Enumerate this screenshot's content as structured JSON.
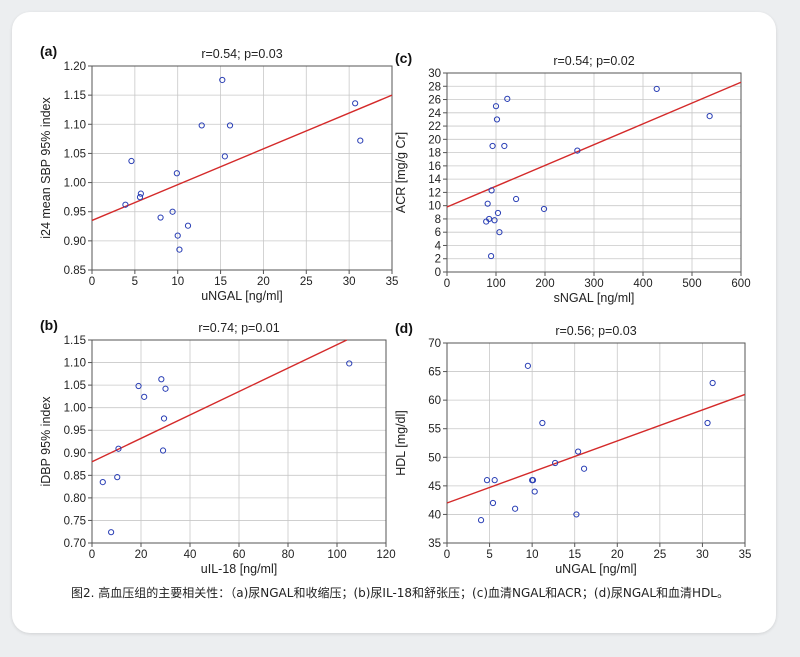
{
  "caption": "图2. 高血压组的主要相关性：（a)尿NGAL和收缩压；(b)尿IL-18和舒张压；(c)血清NGAL和ACR；(d)尿NGAL和血清HDL。",
  "chart_data": [
    {
      "panel": "(a)",
      "type": "scatter",
      "title": "r=0.54; p=0.03",
      "xlabel": "uNGAL [ng/ml]",
      "ylabel": "i24 mean SBP 95% index",
      "xlim": [
        0,
        35
      ],
      "ylim": [
        0.85,
        1.2
      ],
      "xticks": [
        0,
        5,
        10,
        15,
        20,
        25,
        30,
        35
      ],
      "yticks": [
        0.85,
        0.9,
        0.95,
        1.0,
        1.05,
        1.1,
        1.15,
        1.2
      ],
      "ytick_decimals": 2,
      "points": [
        [
          3.9,
          0.962
        ],
        [
          4.6,
          1.037
        ],
        [
          5.6,
          0.975
        ],
        [
          5.7,
          0.981
        ],
        [
          8.0,
          0.94
        ],
        [
          9.4,
          0.95
        ],
        [
          9.9,
          1.016
        ],
        [
          10.0,
          0.909
        ],
        [
          10.2,
          0.885
        ],
        [
          11.2,
          0.926
        ],
        [
          12.8,
          1.098
        ],
        [
          15.2,
          1.176
        ],
        [
          15.5,
          1.045
        ],
        [
          16.1,
          1.098
        ],
        [
          30.7,
          1.136
        ],
        [
          31.3,
          1.072
        ]
      ],
      "fit": [
        [
          0,
          0.935
        ],
        [
          35,
          1.15
        ]
      ],
      "grid": true
    },
    {
      "panel": "(b)",
      "type": "scatter",
      "title": "r=0.74; p=0.01",
      "xlabel": "uIL-18 [ng/ml]",
      "ylabel": "iDBP 95% index",
      "xlim": [
        0,
        120
      ],
      "ylim": [
        0.7,
        1.15
      ],
      "xticks": [
        0,
        20,
        40,
        60,
        80,
        100,
        120
      ],
      "yticks": [
        0.7,
        0.75,
        0.8,
        0.85,
        0.9,
        0.95,
        1.0,
        1.05,
        1.1,
        1.15
      ],
      "ytick_decimals": 2,
      "points": [
        [
          4.4,
          0.835
        ],
        [
          7.8,
          0.724
        ],
        [
          10.3,
          0.846
        ],
        [
          10.8,
          0.909
        ],
        [
          19.0,
          1.048
        ],
        [
          21.3,
          1.024
        ],
        [
          28.3,
          1.063
        ],
        [
          29.0,
          0.905
        ],
        [
          29.4,
          0.976
        ],
        [
          30.0,
          1.042
        ],
        [
          105.0,
          1.098
        ]
      ],
      "fit": [
        [
          0,
          0.88
        ],
        [
          104,
          1.15
        ]
      ],
      "grid": true
    },
    {
      "panel": "(c)",
      "type": "scatter",
      "title": "r=0.54; p=0.02",
      "xlabel": "sNGAL [ng/ml]",
      "ylabel": "ACR [mg/g Cr]",
      "xlim": [
        0,
        600
      ],
      "ylim": [
        0,
        30
      ],
      "xticks": [
        0,
        100,
        200,
        300,
        400,
        500,
        600
      ],
      "yticks": [
        0,
        2,
        4,
        6,
        8,
        10,
        12,
        14,
        16,
        18,
        20,
        22,
        24,
        26,
        28,
        30
      ],
      "ytick_decimals": 0,
      "points": [
        [
          80,
          7.6
        ],
        [
          83,
          10.3
        ],
        [
          86,
          8.0
        ],
        [
          90,
          2.4
        ],
        [
          91,
          12.3
        ],
        [
          93,
          19.0
        ],
        [
          97,
          7.8
        ],
        [
          100,
          25.0
        ],
        [
          102,
          23.0
        ],
        [
          104,
          8.9
        ],
        [
          107,
          6.0
        ],
        [
          117,
          19.0
        ],
        [
          123,
          26.1
        ],
        [
          141,
          11.0
        ],
        [
          198,
          9.5
        ],
        [
          266,
          18.3
        ],
        [
          428,
          27.6
        ],
        [
          536,
          23.5
        ]
      ],
      "fit": [
        [
          0,
          9.8
        ],
        [
          600,
          28.6
        ]
      ],
      "grid": true
    },
    {
      "panel": "(d)",
      "type": "scatter",
      "title": "r=0.56; p=0.03",
      "xlabel": "uNGAL [ng/ml]",
      "ylabel": "HDL [mg/dl]",
      "xlim": [
        0,
        35
      ],
      "ylim": [
        35,
        70
      ],
      "xticks": [
        0,
        5,
        10,
        15,
        20,
        25,
        30,
        35
      ],
      "yticks": [
        35,
        40,
        45,
        50,
        55,
        60,
        65,
        70
      ],
      "ytick_decimals": 0,
      "points": [
        [
          4.0,
          39
        ],
        [
          4.7,
          46
        ],
        [
          5.4,
          42
        ],
        [
          5.6,
          46
        ],
        [
          8.0,
          41
        ],
        [
          9.5,
          66
        ],
        [
          10.0,
          46
        ],
        [
          10.1,
          46
        ],
        [
          10.3,
          44
        ],
        [
          11.2,
          56
        ],
        [
          12.7,
          49
        ],
        [
          15.2,
          40
        ],
        [
          15.4,
          51
        ],
        [
          16.1,
          48
        ],
        [
          30.6,
          56
        ],
        [
          31.2,
          63
        ]
      ],
      "fit": [
        [
          0,
          42
        ],
        [
          35,
          61
        ]
      ],
      "grid": true
    }
  ]
}
